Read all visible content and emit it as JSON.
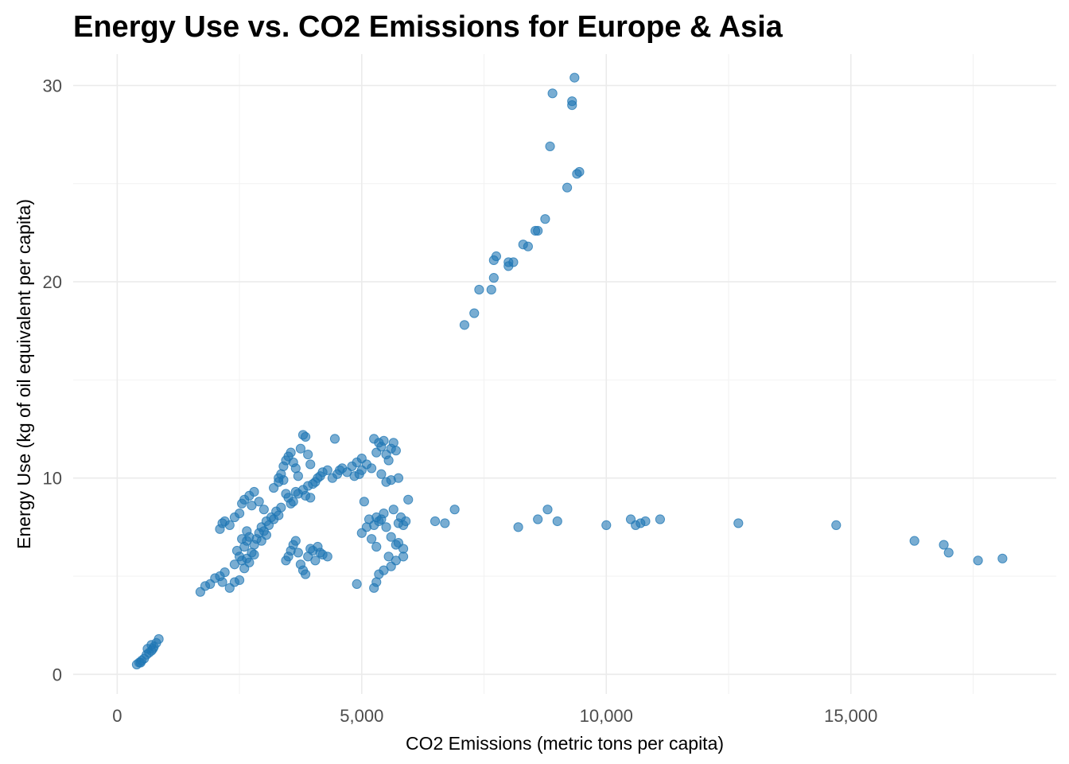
{
  "chart_data": {
    "type": "scatter",
    "title": "Energy Use vs. CO2 Emissions for Europe & Asia",
    "xlabel": "CO2 Emissions (metric tons per capita)",
    "ylabel": "Energy Use (kg of oil equivalent per capita)",
    "xlim": [
      -900,
      19200
    ],
    "ylim": [
      -1.0,
      31.6
    ],
    "x_ticks": [
      0,
      5000,
      10000,
      15000
    ],
    "x_tick_labels": [
      "0",
      "5,000",
      "10,000",
      "15,000"
    ],
    "y_ticks": [
      0,
      10,
      20,
      30
    ],
    "y_tick_labels": [
      "0",
      "10",
      "20",
      "30"
    ],
    "grid": true,
    "point_color": "#1f77b4",
    "point_opacity": 0.6,
    "series": [
      {
        "points": [
          [
            400,
            0.5
          ],
          [
            450,
            0.6
          ],
          [
            500,
            0.7
          ],
          [
            550,
            0.8
          ],
          [
            600,
            1.0
          ],
          [
            650,
            1.1
          ],
          [
            700,
            1.2
          ],
          [
            750,
            1.4
          ],
          [
            800,
            1.6
          ],
          [
            850,
            1.8
          ],
          [
            620,
            1.3
          ],
          [
            700,
            1.5
          ],
          [
            480,
            0.6
          ],
          [
            730,
            1.3
          ],
          [
            1700,
            4.2
          ],
          [
            1800,
            4.5
          ],
          [
            1900,
            4.6
          ],
          [
            2000,
            4.9
          ],
          [
            2100,
            5.0
          ],
          [
            2150,
            4.7
          ],
          [
            2200,
            5.2
          ],
          [
            2300,
            4.4
          ],
          [
            2400,
            4.7
          ],
          [
            2500,
            4.8
          ],
          [
            2100,
            7.4
          ],
          [
            2150,
            7.7
          ],
          [
            2200,
            7.8
          ],
          [
            2300,
            7.6
          ],
          [
            2400,
            8.0
          ],
          [
            2500,
            8.2
          ],
          [
            2550,
            8.7
          ],
          [
            2600,
            8.9
          ],
          [
            2700,
            9.1
          ],
          [
            2800,
            9.3
          ],
          [
            2750,
            8.6
          ],
          [
            2900,
            8.8
          ],
          [
            3000,
            8.4
          ],
          [
            2400,
            5.6
          ],
          [
            2450,
            6.3
          ],
          [
            2500,
            6.0
          ],
          [
            2550,
            5.8
          ],
          [
            2600,
            6.5
          ],
          [
            2650,
            6.8
          ],
          [
            2700,
            7.0
          ],
          [
            2750,
            6.2
          ],
          [
            2800,
            6.6
          ],
          [
            2850,
            6.9
          ],
          [
            2900,
            7.2
          ],
          [
            2950,
            7.5
          ],
          [
            3000,
            7.3
          ],
          [
            3050,
            7.8
          ],
          [
            3100,
            7.6
          ],
          [
            3150,
            8.0
          ],
          [
            3200,
            7.9
          ],
          [
            3250,
            8.3
          ],
          [
            3300,
            8.1
          ],
          [
            3350,
            8.5
          ],
          [
            2600,
            5.4
          ],
          [
            2650,
            5.9
          ],
          [
            2700,
            5.7
          ],
          [
            2800,
            6.1
          ],
          [
            2550,
            6.9
          ],
          [
            2650,
            7.3
          ],
          [
            2950,
            6.8
          ],
          [
            3050,
            7.1
          ],
          [
            3200,
            9.5
          ],
          [
            3300,
            9.8
          ],
          [
            3350,
            10.2
          ],
          [
            3400,
            10.6
          ],
          [
            3450,
            10.9
          ],
          [
            3500,
            11.1
          ],
          [
            3550,
            11.3
          ],
          [
            3600,
            10.8
          ],
          [
            3650,
            10.5
          ],
          [
            3700,
            10.1
          ],
          [
            3750,
            11.5
          ],
          [
            3800,
            12.2
          ],
          [
            3850,
            12.1
          ],
          [
            3900,
            11.2
          ],
          [
            3950,
            10.7
          ],
          [
            3500,
            9.0
          ],
          [
            3600,
            8.8
          ],
          [
            3700,
            9.2
          ],
          [
            3800,
            9.4
          ],
          [
            3900,
            9.6
          ],
          [
            4000,
            9.7
          ],
          [
            4100,
            10.0
          ],
          [
            4200,
            10.3
          ],
          [
            4300,
            10.4
          ],
          [
            3450,
            9.2
          ],
          [
            3550,
            8.7
          ],
          [
            3650,
            9.3
          ],
          [
            3850,
            9.1
          ],
          [
            3950,
            9.0
          ],
          [
            4050,
            9.8
          ],
          [
            4150,
            10.1
          ],
          [
            3400,
            9.9
          ],
          [
            3300,
            10.0
          ],
          [
            4400,
            10.0
          ],
          [
            4450,
            12.0
          ],
          [
            4500,
            10.2
          ],
          [
            4550,
            10.4
          ],
          [
            4600,
            10.5
          ],
          [
            4700,
            10.3
          ],
          [
            4800,
            10.6
          ],
          [
            4900,
            10.8
          ],
          [
            5000,
            11.0
          ],
          [
            5100,
            10.7
          ],
          [
            5000,
            10.4
          ],
          [
            4850,
            10.1
          ],
          [
            4950,
            10.2
          ],
          [
            5200,
            10.5
          ],
          [
            5300,
            11.3
          ],
          [
            5250,
            12.0
          ],
          [
            5350,
            11.8
          ],
          [
            5400,
            11.6
          ],
          [
            5450,
            11.9
          ],
          [
            5500,
            11.2
          ],
          [
            5550,
            10.9
          ],
          [
            5600,
            11.5
          ],
          [
            5650,
            11.8
          ],
          [
            5700,
            11.4
          ],
          [
            5750,
            10.0
          ],
          [
            5500,
            9.8
          ],
          [
            5600,
            9.9
          ],
          [
            5400,
            10.2
          ],
          [
            3500,
            6.0
          ],
          [
            3550,
            6.3
          ],
          [
            3600,
            6.6
          ],
          [
            3650,
            6.8
          ],
          [
            3700,
            6.2
          ],
          [
            3750,
            5.6
          ],
          [
            3800,
            5.3
          ],
          [
            3850,
            5.1
          ],
          [
            3900,
            6.0
          ],
          [
            4000,
            6.3
          ],
          [
            4100,
            6.5
          ],
          [
            4200,
            6.1
          ],
          [
            4300,
            6.0
          ],
          [
            4150,
            6.2
          ],
          [
            3450,
            5.8
          ],
          [
            4050,
            5.8
          ],
          [
            3950,
            6.4
          ],
          [
            5000,
            7.2
          ],
          [
            5050,
            8.8
          ],
          [
            5100,
            7.5
          ],
          [
            5150,
            7.9
          ],
          [
            5200,
            6.9
          ],
          [
            5250,
            7.6
          ],
          [
            5300,
            6.5
          ],
          [
            5350,
            7.8
          ],
          [
            5400,
            7.9
          ],
          [
            5450,
            8.2
          ],
          [
            5500,
            7.5
          ],
          [
            5550,
            6.0
          ],
          [
            5600,
            7.0
          ],
          [
            5650,
            8.4
          ],
          [
            5700,
            6.6
          ],
          [
            5750,
            7.7
          ],
          [
            5800,
            8.0
          ],
          [
            5850,
            7.6
          ],
          [
            5900,
            7.8
          ],
          [
            5950,
            8.9
          ],
          [
            5750,
            6.7
          ],
          [
            5850,
            6.4
          ],
          [
            5700,
            5.8
          ],
          [
            5600,
            5.5
          ],
          [
            5450,
            5.3
          ],
          [
            5350,
            5.1
          ],
          [
            5300,
            4.7
          ],
          [
            5250,
            4.4
          ],
          [
            4900,
            4.6
          ],
          [
            5300,
            8.0
          ],
          [
            5850,
            6.0
          ],
          [
            6500,
            7.8
          ],
          [
            6700,
            7.7
          ],
          [
            6900,
            8.4
          ],
          [
            8200,
            7.5
          ],
          [
            8600,
            7.9
          ],
          [
            8800,
            8.4
          ],
          [
            9000,
            7.8
          ],
          [
            10000,
            7.6
          ],
          [
            10500,
            7.9
          ],
          [
            10600,
            7.6
          ],
          [
            10700,
            7.7
          ],
          [
            10800,
            7.8
          ],
          [
            11100,
            7.9
          ],
          [
            12700,
            7.7
          ],
          [
            14700,
            7.6
          ],
          [
            16300,
            6.8
          ],
          [
            16900,
            6.6
          ],
          [
            17000,
            6.2
          ],
          [
            17600,
            5.8
          ],
          [
            18100,
            5.9
          ],
          [
            7100,
            17.8
          ],
          [
            7300,
            18.4
          ],
          [
            7400,
            19.6
          ],
          [
            7650,
            19.6
          ],
          [
            7700,
            20.2
          ],
          [
            7700,
            21.1
          ],
          [
            7750,
            21.3
          ],
          [
            8000,
            20.8
          ],
          [
            8000,
            21.0
          ],
          [
            8100,
            21.0
          ],
          [
            8300,
            21.9
          ],
          [
            8400,
            21.8
          ],
          [
            8550,
            22.6
          ],
          [
            8600,
            22.6
          ],
          [
            8750,
            23.2
          ],
          [
            8850,
            26.9
          ],
          [
            8900,
            29.6
          ],
          [
            9200,
            24.8
          ],
          [
            9300,
            29.2
          ],
          [
            9300,
            29.0
          ],
          [
            9350,
            30.4
          ],
          [
            9400,
            25.5
          ],
          [
            9450,
            25.6
          ]
        ]
      }
    ]
  }
}
